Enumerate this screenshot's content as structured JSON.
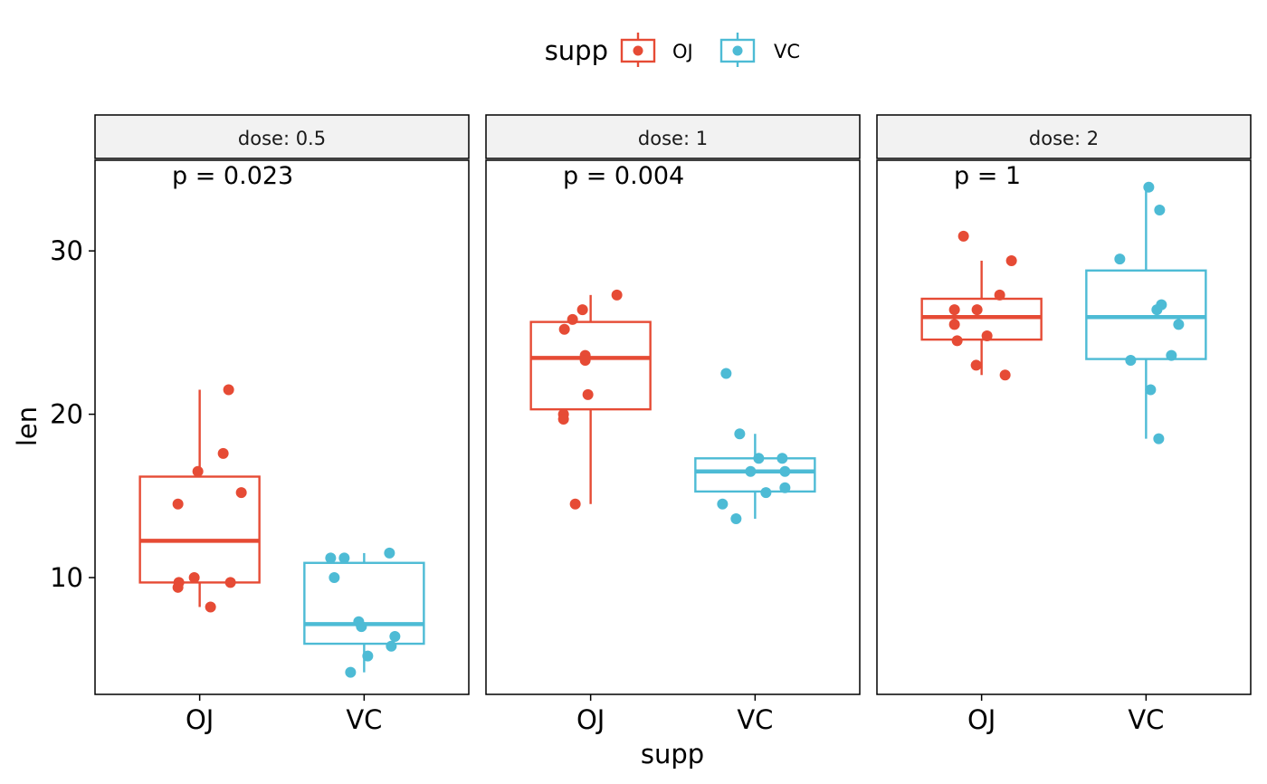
{
  "chart_data": {
    "type": "boxplot",
    "xlabel": "supp",
    "ylabel": "len",
    "ylim": [
      2.85,
      35.55
    ],
    "yticks": [
      10,
      20,
      30
    ],
    "categories": [
      "OJ",
      "VC"
    ],
    "legend": {
      "title": "supp",
      "position": "top",
      "items": [
        {
          "label": "OJ",
          "color": "#E64B35"
        },
        {
          "label": "VC",
          "color": "#4DBBD5"
        }
      ]
    },
    "panels": [
      {
        "strip": "dose: 0.5",
        "p_label": "p = 0.023",
        "boxes": [
          {
            "group": "OJ",
            "min": 8.2,
            "q1": 9.7,
            "median": 12.25,
            "q3": 16.18,
            "max": 21.5,
            "points": [
              21.5,
              17.6,
              16.5,
              15.2,
              14.5,
              10.0,
              9.7,
              9.7,
              9.4,
              8.2
            ]
          },
          {
            "group": "VC",
            "min": 4.2,
            "q1": 5.95,
            "median": 7.15,
            "q3": 10.9,
            "max": 11.5,
            "points": [
              11.5,
              11.2,
              11.2,
              10.0,
              7.3,
              7.0,
              6.4,
              5.8,
              5.2,
              4.2
            ]
          }
        ]
      },
      {
        "strip": "dose: 1",
        "p_label": "p = 0.004",
        "boxes": [
          {
            "group": "OJ",
            "min": 14.5,
            "q1": 20.3,
            "median": 23.45,
            "q3": 25.65,
            "max": 27.3,
            "points": [
              27.3,
              26.4,
              25.8,
              25.2,
              23.6,
              23.3,
              21.2,
              20.0,
              19.7,
              14.5
            ]
          },
          {
            "group": "VC",
            "min": 13.6,
            "q1": 15.27,
            "median": 16.5,
            "q3": 17.3,
            "max": 18.8,
            "points": [
              22.5,
              18.8,
              17.3,
              17.3,
              16.5,
              16.5,
              15.5,
              15.2,
              14.5,
              13.6
            ]
          }
        ]
      },
      {
        "strip": "dose: 2",
        "p_label": "p = 1",
        "boxes": [
          {
            "group": "OJ",
            "min": 22.4,
            "q1": 24.57,
            "median": 25.95,
            "q3": 27.07,
            "max": 29.4,
            "points": [
              30.9,
              29.4,
              27.3,
              26.4,
              26.4,
              25.5,
              24.8,
              24.5,
              23.0,
              22.4
            ]
          },
          {
            "group": "VC",
            "min": 18.5,
            "q1": 23.38,
            "median": 25.95,
            "q3": 28.8,
            "max": 33.9,
            "points": [
              33.9,
              32.5,
              29.5,
              26.7,
              26.4,
              25.5,
              23.6,
              23.3,
              21.5,
              18.5
            ]
          }
        ]
      }
    ]
  }
}
